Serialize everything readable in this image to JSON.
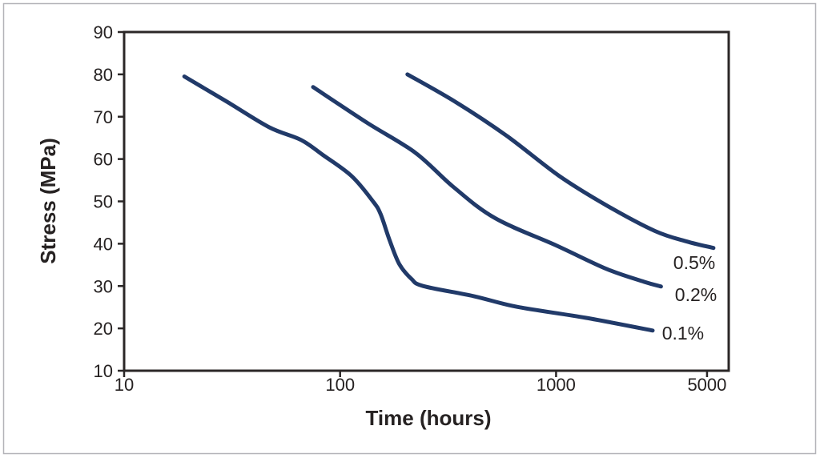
{
  "chart_data": {
    "type": "line",
    "title": "",
    "xlabel": "Time (hours)",
    "ylabel": "Stress (MPa)",
    "x_scale": "log",
    "x_range": [
      10,
      6300
    ],
    "y_range": [
      10,
      90
    ],
    "x_ticks": [
      10,
      100,
      1000,
      5000
    ],
    "y_ticks": [
      10,
      20,
      30,
      40,
      50,
      60,
      70,
      80,
      90
    ],
    "grid": false,
    "legend": "inline-curve-labels",
    "series": [
      {
        "name": "0.1%",
        "label": "0.1%",
        "label_anchor": {
          "t": 3870,
          "stress": 18.9
        },
        "points": [
          [
            19,
            79.5
          ],
          [
            30,
            73.5
          ],
          [
            47,
            67.5
          ],
          [
            66,
            64.5
          ],
          [
            83,
            61
          ],
          [
            113,
            56
          ],
          [
            142,
            50
          ],
          [
            154,
            47
          ],
          [
            169,
            41
          ],
          [
            188,
            35.2
          ],
          [
            214,
            31.7
          ],
          [
            243,
            30
          ],
          [
            416,
            27.6
          ],
          [
            660,
            25.1
          ],
          [
            1370,
            22.5
          ],
          [
            2800,
            19.5
          ]
        ]
      },
      {
        "name": "0.2%",
        "label": "0.2%",
        "label_anchor": {
          "t": 4440,
          "stress": 28.0
        },
        "points": [
          [
            75,
            77
          ],
          [
            134,
            68.5
          ],
          [
            223,
            61.5
          ],
          [
            333,
            53.5
          ],
          [
            523,
            46
          ],
          [
            1010,
            39.5
          ],
          [
            1720,
            34
          ],
          [
            2560,
            31
          ],
          [
            3060,
            29.9
          ]
        ]
      },
      {
        "name": "0.5%",
        "label": "0.5%",
        "label_anchor": {
          "t": 4365,
          "stress": 35.5
        },
        "points": [
          [
            205,
            80
          ],
          [
            342,
            73.5
          ],
          [
            590,
            65.5
          ],
          [
            1035,
            56
          ],
          [
            1720,
            49
          ],
          [
            2870,
            43
          ],
          [
            4040,
            40.5
          ],
          [
            5350,
            39
          ]
        ]
      }
    ],
    "colors": {
      "curve": "#213a69",
      "axis": "#2b2727",
      "text": "#262222",
      "frame": "#b3b3b8",
      "background": "#ffffff"
    }
  }
}
